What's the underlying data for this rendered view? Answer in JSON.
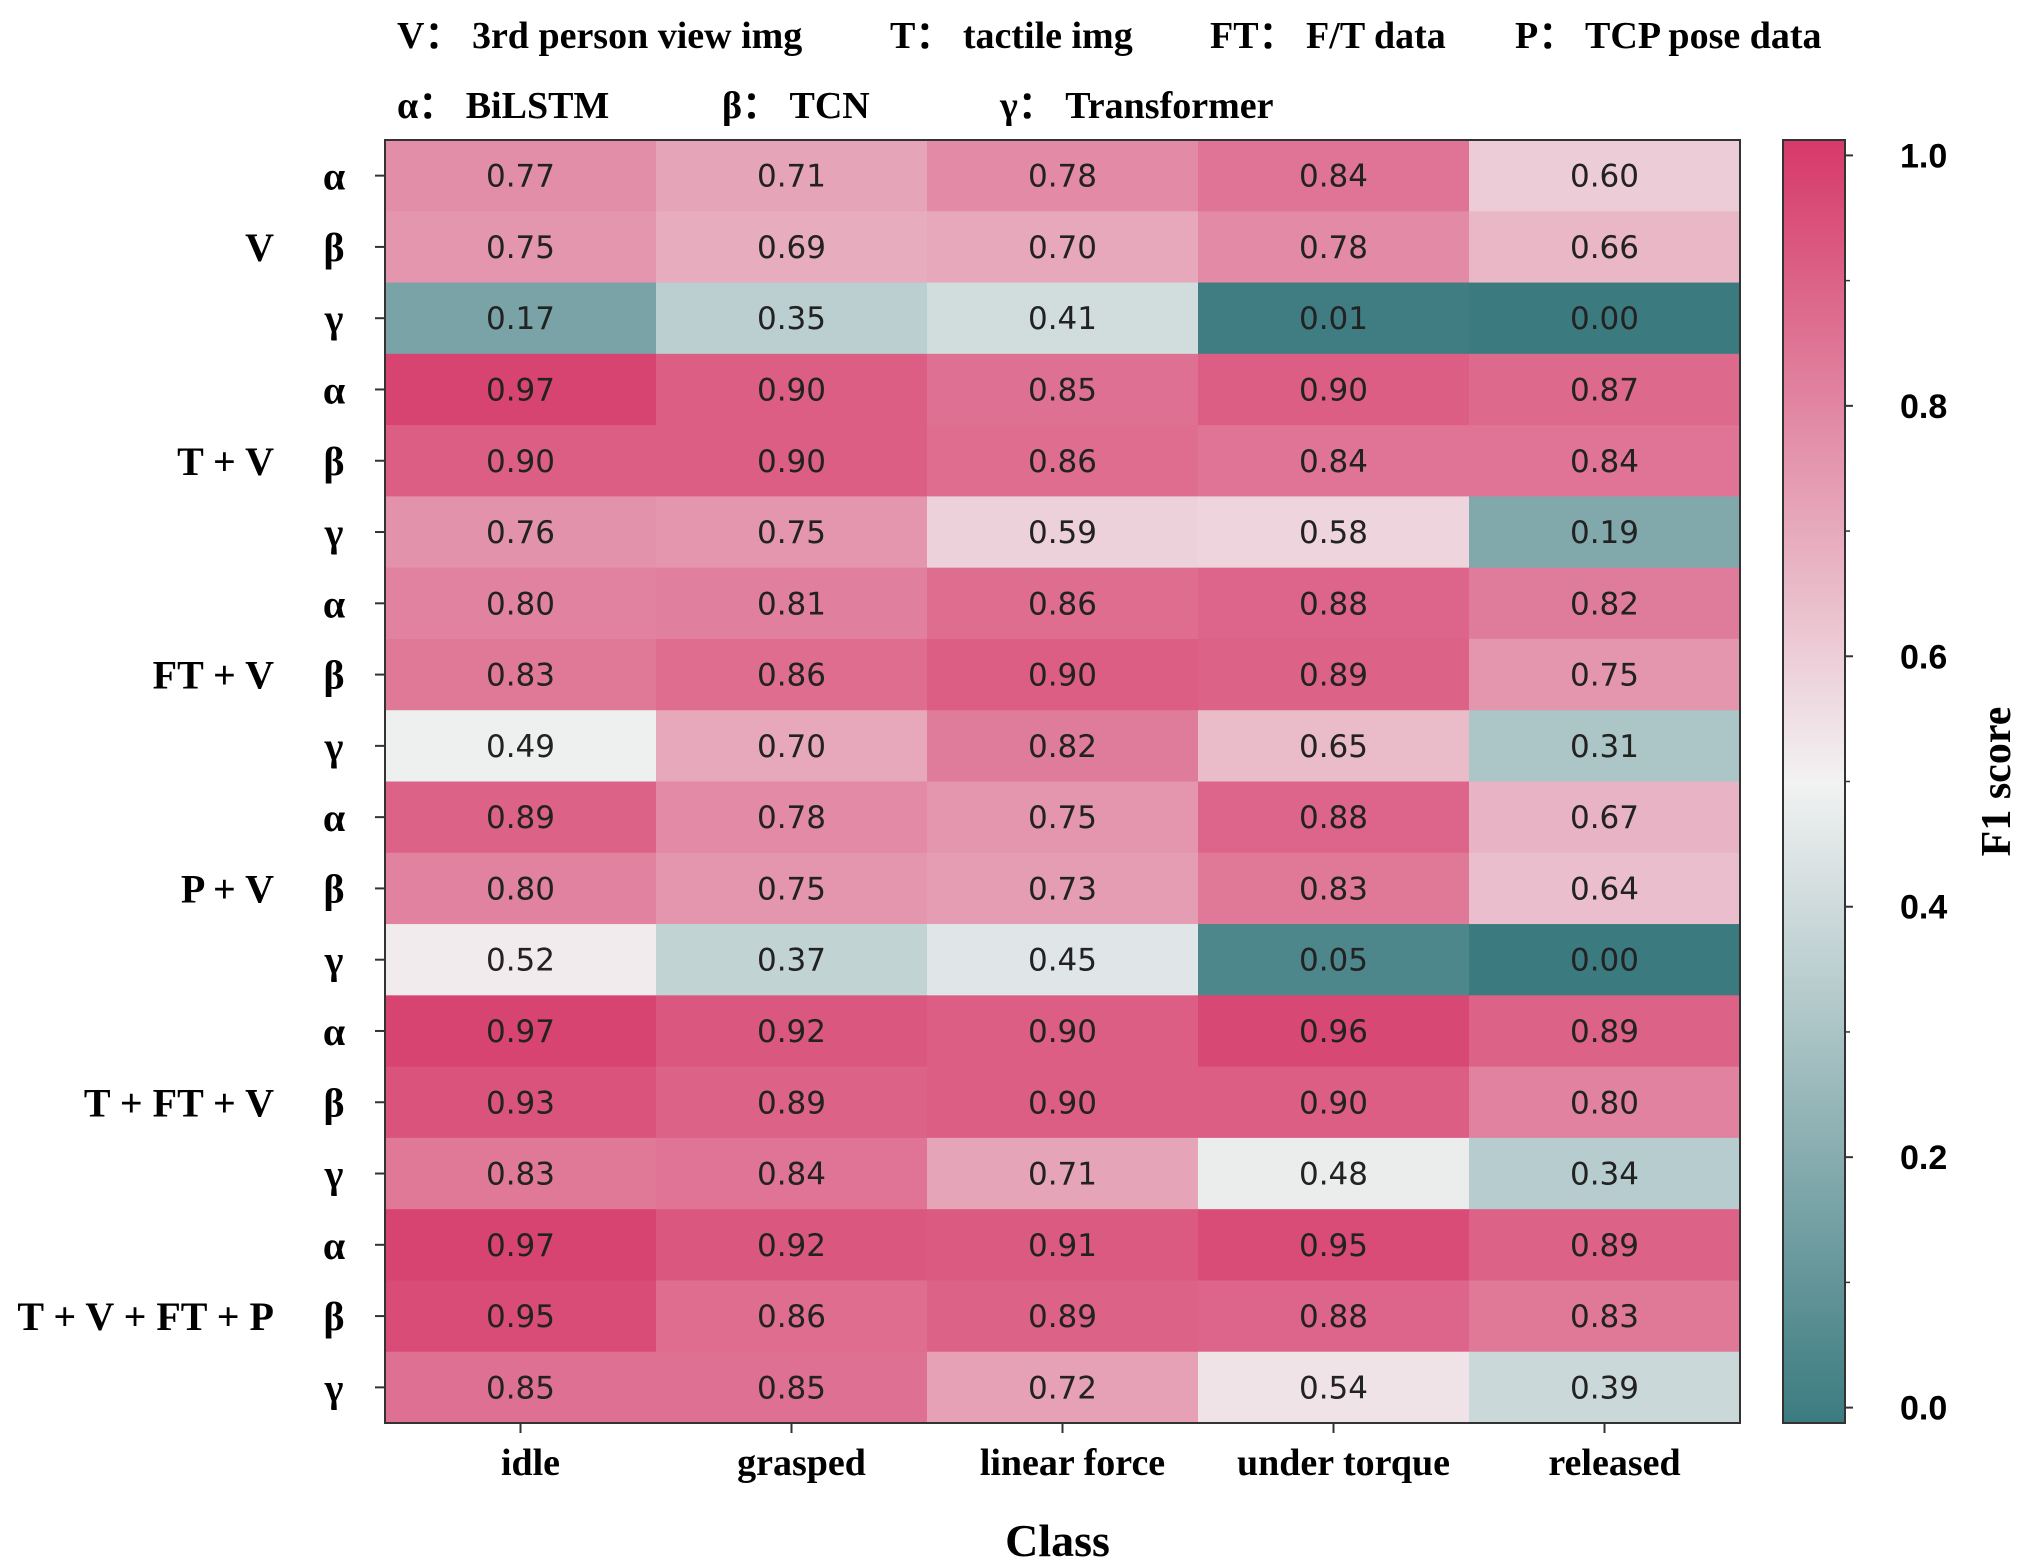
{
  "legend": {
    "line1": [
      {
        "key": "V：",
        "desc": "3rd person view img"
      },
      {
        "key": "T：",
        "desc": "tactile img"
      },
      {
        "key": "FT：",
        "desc": "F/T data"
      },
      {
        "key": "P：",
        "desc": "TCP pose data"
      }
    ],
    "line2": [
      {
        "key": "α：",
        "desc": "BiLSTM"
      },
      {
        "key": "β：",
        "desc": "TCN"
      },
      {
        "key": "γ：",
        "desc": "Transformer"
      }
    ]
  },
  "colors": {
    "low": "#3b7b80",
    "mid": "#f2f2f2",
    "high": "#d6396a"
  },
  "chart_data": {
    "type": "heatmap",
    "xlabel": "Class",
    "colorbar_label": "F1 score",
    "colorbar_ticks": [
      "0.0",
      "0.2",
      "0.4",
      "0.6",
      "0.8",
      "1.0"
    ],
    "vmin": 0.0,
    "vmax": 1.0,
    "columns": [
      "idle",
      "grasped",
      "linear force",
      "under torque",
      "released"
    ],
    "groups": [
      "V",
      "T + V",
      "FT + V",
      "P + V",
      "T + FT + V",
      "T + V + FT + P"
    ],
    "rows": [
      "α",
      "β",
      "γ",
      "α",
      "β",
      "γ",
      "α",
      "β",
      "γ",
      "α",
      "β",
      "γ",
      "α",
      "β",
      "γ",
      "α",
      "β",
      "γ"
    ],
    "values": [
      [
        0.77,
        0.71,
        0.78,
        0.84,
        0.6
      ],
      [
        0.75,
        0.69,
        0.7,
        0.78,
        0.66
      ],
      [
        0.17,
        0.35,
        0.41,
        0.01,
        0.0
      ],
      [
        0.97,
        0.9,
        0.85,
        0.9,
        0.87
      ],
      [
        0.9,
        0.9,
        0.86,
        0.84,
        0.84
      ],
      [
        0.76,
        0.75,
        0.59,
        0.58,
        0.19
      ],
      [
        0.8,
        0.81,
        0.86,
        0.88,
        0.82
      ],
      [
        0.83,
        0.86,
        0.9,
        0.89,
        0.75
      ],
      [
        0.49,
        0.7,
        0.82,
        0.65,
        0.31
      ],
      [
        0.89,
        0.78,
        0.75,
        0.88,
        0.67
      ],
      [
        0.8,
        0.75,
        0.73,
        0.83,
        0.64
      ],
      [
        0.52,
        0.37,
        0.45,
        0.05,
        0.0
      ],
      [
        0.97,
        0.92,
        0.9,
        0.96,
        0.89
      ],
      [
        0.93,
        0.89,
        0.9,
        0.9,
        0.8
      ],
      [
        0.83,
        0.84,
        0.71,
        0.48,
        0.34
      ],
      [
        0.97,
        0.92,
        0.91,
        0.95,
        0.89
      ],
      [
        0.95,
        0.86,
        0.89,
        0.88,
        0.83
      ],
      [
        0.85,
        0.85,
        0.72,
        0.54,
        0.39
      ]
    ]
  }
}
